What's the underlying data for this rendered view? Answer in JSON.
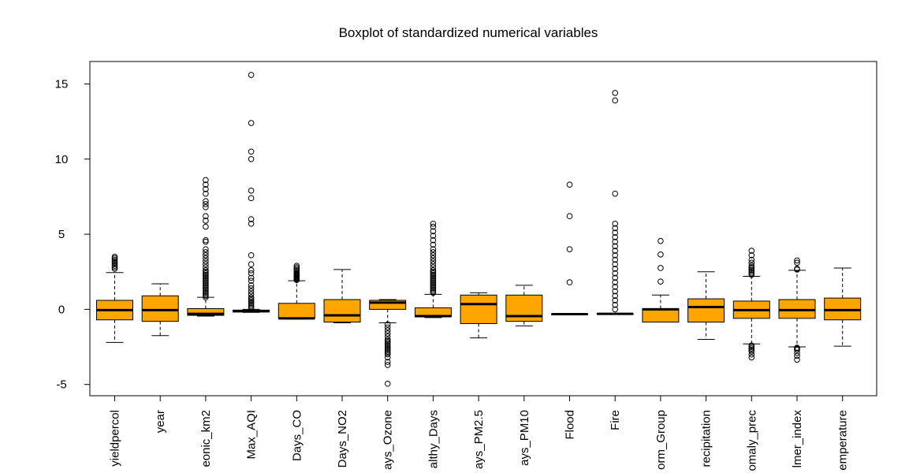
{
  "chart_data": {
    "type": "boxplot",
    "title": "Boxplot of standardized numerical variables",
    "xlabel": "",
    "ylabel": "",
    "ylim": [
      -5.6,
      16.2
    ],
    "yticks": [
      -5,
      0,
      5,
      10,
      15
    ],
    "ytick_labels": [
      "-5",
      "0",
      "5",
      "10",
      "15"
    ],
    "grid": false,
    "box_color": "#FFA500",
    "categories": [
      "yieldpercol",
      "year",
      "eonic_km2",
      "Max_AQI",
      "Days_CO",
      "Days_NO2",
      "ays_Ozone",
      "althy_Days",
      "ays_PM2.5",
      "ays_PM10",
      "Flood",
      "Fire",
      "orm_Group",
      "recipitation",
      "omaly_prec",
      "lmer_index",
      "emperature"
    ],
    "boxes": [
      {
        "min": -2.2,
        "q1": -0.7,
        "median": -0.05,
        "q3": 0.6,
        "max": 2.45,
        "outliers": [
          2.7,
          2.8,
          2.9,
          3.0,
          3.1,
          3.2,
          3.3,
          3.4,
          3.5
        ]
      },
      {
        "min": -1.75,
        "q1": -0.8,
        "median": -0.05,
        "q3": 0.9,
        "max": 1.7,
        "outliers": []
      },
      {
        "min": -0.45,
        "q1": -0.4,
        "median": -0.3,
        "q3": 0.05,
        "max": 0.8,
        "outliers": [
          0.8,
          0.9,
          1.0,
          1.1,
          1.2,
          1.3,
          1.4,
          1.5,
          1.6,
          1.7,
          1.8,
          1.9,
          2.0,
          2.1,
          2.2,
          2.3,
          2.4,
          2.5,
          2.6,
          2.8,
          3.0,
          3.2,
          3.4,
          3.6,
          3.8,
          4.0,
          4.5,
          4.6,
          5.5,
          5.9,
          6.2,
          6.8,
          7.0,
          7.2,
          7.7,
          8.0,
          8.3,
          8.6
        ]
      },
      {
        "min": -0.2,
        "q1": -0.18,
        "median": -0.12,
        "q3": -0.05,
        "max": 0.0,
        "outliers": [
          0.1,
          0.2,
          0.3,
          0.4,
          0.5,
          0.6,
          0.7,
          0.8,
          1.0,
          1.2,
          1.4,
          1.6,
          1.9,
          2.1,
          2.4,
          2.6,
          3.0,
          3.6,
          5.7,
          6.0,
          7.4,
          7.9,
          10.0,
          10.5,
          12.4,
          15.6
        ]
      },
      {
        "min": -0.65,
        "q1": -0.6,
        "median": -0.6,
        "q3": 0.4,
        "max": 1.9,
        "outliers": [
          1.95,
          2.0,
          2.05,
          2.1,
          2.15,
          2.2,
          2.25,
          2.3,
          2.35,
          2.4,
          2.5,
          2.6,
          2.7,
          2.8,
          2.9
        ]
      },
      {
        "min": -0.9,
        "q1": -0.85,
        "median": -0.4,
        "q3": 0.65,
        "max": 2.65,
        "outliers": []
      },
      {
        "min": -0.9,
        "q1": 0.0,
        "median": 0.45,
        "q3": 0.6,
        "max": 0.65,
        "outliers": [
          -1.0,
          -1.2,
          -1.4,
          -1.6,
          -1.8,
          -2.0,
          -2.1,
          -2.2,
          -2.3,
          -2.4,
          -2.5,
          -2.6,
          -2.7,
          -2.8,
          -2.9,
          -3.0,
          -3.2,
          -3.5,
          -3.7,
          -4.95
        ]
      },
      {
        "min": -0.55,
        "q1": -0.5,
        "median": -0.45,
        "q3": 0.1,
        "max": 1.0,
        "outliers": [
          1.1,
          1.2,
          1.3,
          1.4,
          1.5,
          1.6,
          1.7,
          1.8,
          1.9,
          2.0,
          2.1,
          2.2,
          2.3,
          2.4,
          2.5,
          2.6,
          2.8,
          3.0,
          3.2,
          3.4,
          3.6,
          3.8,
          4.0,
          4.3,
          4.6,
          4.9,
          5.2,
          5.5,
          5.7
        ]
      },
      {
        "min": -1.9,
        "q1": -0.95,
        "median": 0.35,
        "q3": 0.95,
        "max": 1.1,
        "outliers": []
      },
      {
        "min": -1.1,
        "q1": -0.8,
        "median": -0.45,
        "q3": 0.95,
        "max": 1.6,
        "outliers": []
      },
      {
        "min": -0.32,
        "q1": -0.32,
        "median": -0.32,
        "q3": -0.32,
        "max": -0.32,
        "outliers": [
          1.8,
          4.0,
          6.2,
          8.3
        ]
      },
      {
        "min": -0.3,
        "q1": -0.3,
        "median": -0.3,
        "q3": -0.3,
        "max": -0.3,
        "outliers": [
          0.0,
          0.3,
          0.6,
          0.9,
          1.2,
          1.5,
          1.8,
          2.1,
          2.4,
          2.7,
          3.0,
          3.3,
          3.6,
          3.9,
          4.2,
          4.5,
          4.8,
          5.1,
          5.4,
          5.7,
          7.7,
          13.9,
          14.4
        ]
      },
      {
        "min": -0.85,
        "q1": -0.85,
        "median": 0.0,
        "q3": 0.05,
        "max": 0.95,
        "outliers": [
          1.85,
          2.75,
          3.65,
          4.55
        ]
      },
      {
        "min": -2.0,
        "q1": -0.85,
        "median": 0.15,
        "q3": 0.7,
        "max": 2.5,
        "outliers": []
      },
      {
        "min": -2.3,
        "q1": -0.6,
        "median": -0.05,
        "q3": 0.55,
        "max": 2.2,
        "outliers": [
          2.3,
          2.4,
          2.5,
          2.6,
          2.7,
          2.8,
          2.9,
          3.1,
          3.3,
          3.6,
          3.9,
          -2.4,
          -2.5,
          -2.6,
          -2.7,
          -2.8,
          -3.0,
          -3.2
        ]
      },
      {
        "min": -2.5,
        "q1": -0.6,
        "median": -0.05,
        "q3": 0.65,
        "max": 2.6,
        "outliers": [
          2.65,
          2.7,
          3.1,
          3.25,
          -2.55,
          -2.6,
          -2.7,
          -2.9,
          -3.1,
          -3.35
        ]
      },
      {
        "min": -2.45,
        "q1": -0.7,
        "median": -0.05,
        "q3": 0.75,
        "max": 2.75,
        "outliers": []
      }
    ]
  }
}
